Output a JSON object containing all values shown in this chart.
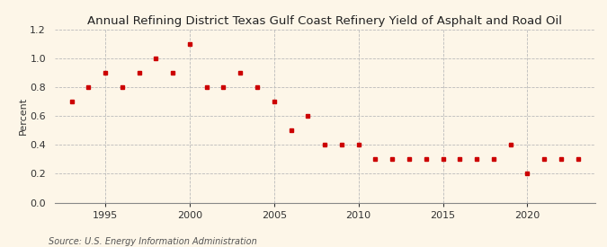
{
  "title": "Annual Refining District Texas Gulf Coast Refinery Yield of Asphalt and Road Oil",
  "ylabel": "Percent",
  "source": "Source: U.S. Energy Information Administration",
  "background_color": "#fdf6e8",
  "marker_color": "#cc0000",
  "years": [
    1993,
    1994,
    1995,
    1996,
    1997,
    1998,
    1999,
    2000,
    2001,
    2002,
    2003,
    2004,
    2005,
    2006,
    2007,
    2008,
    2009,
    2010,
    2011,
    2012,
    2013,
    2014,
    2015,
    2016,
    2017,
    2018,
    2019,
    2020,
    2021,
    2022,
    2023
  ],
  "values": [
    0.7,
    0.8,
    0.9,
    0.8,
    0.9,
    1.0,
    0.9,
    1.1,
    0.8,
    0.8,
    0.9,
    0.8,
    0.7,
    0.5,
    0.6,
    0.4,
    0.4,
    0.4,
    0.3,
    0.3,
    0.3,
    0.3,
    0.3,
    0.3,
    0.3,
    0.3,
    0.4,
    0.2,
    0.3,
    0.3,
    0.3
  ],
  "ylim": [
    0.0,
    1.2
  ],
  "yticks": [
    0.0,
    0.2,
    0.4,
    0.6,
    0.8,
    1.0,
    1.2
  ],
  "xlim": [
    1992,
    2024
  ],
  "xticks": [
    1995,
    2000,
    2005,
    2010,
    2015,
    2020
  ],
  "title_fontsize": 9.5,
  "label_fontsize": 8,
  "source_fontsize": 7
}
